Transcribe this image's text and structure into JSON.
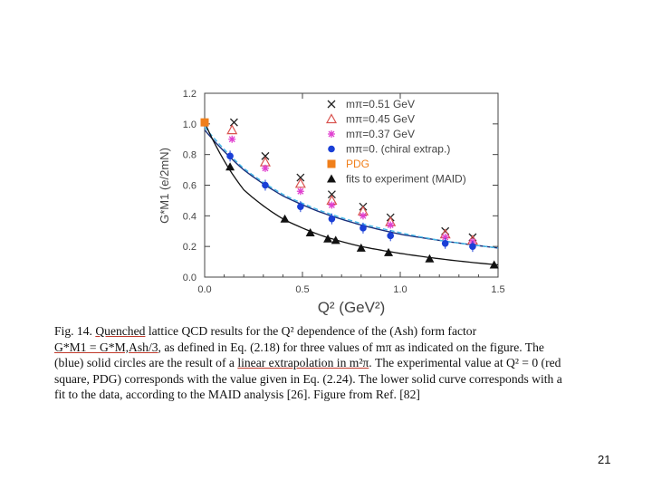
{
  "chart_data": {
    "type": "scatter",
    "xlabel": "Q² (GeV²)",
    "ylabel": "G*M1 (e/2mN)",
    "xlim": [
      0.0,
      1.5
    ],
    "ylim": [
      0.0,
      1.2
    ],
    "xticks": [
      "0.0",
      "0.5",
      "1.0",
      "1.5"
    ],
    "yticks": [
      "0.0",
      "0.2",
      "0.4",
      "0.6",
      "0.8",
      "1.0",
      "1.2"
    ],
    "grid": false,
    "legend_position": "top-right",
    "legend": [
      {
        "label": "mπ=0.51 GeV",
        "marker": "×",
        "color": "#222222"
      },
      {
        "label": "mπ=0.45 GeV",
        "marker": "△",
        "color": "#d9534f"
      },
      {
        "label": "mπ=0.37 GeV",
        "marker": "✳",
        "color": "#e040d0"
      },
      {
        "label": "mπ=0.  (chiral extrap.)",
        "marker": "●",
        "color": "#1a3fd6"
      },
      {
        "label": "PDG",
        "marker": "■",
        "color": "#f07f1a"
      },
      {
        "label": "fits to experiment (MAID)",
        "marker": "▲",
        "color": "#111111"
      }
    ],
    "series": [
      {
        "name": "mπ=0.51 GeV",
        "x": [
          0.15,
          0.31,
          0.49,
          0.65,
          0.81,
          0.95,
          1.23,
          1.37
        ],
        "y": [
          1.01,
          0.79,
          0.65,
          0.54,
          0.46,
          0.39,
          0.3,
          0.26
        ]
      },
      {
        "name": "mπ=0.45 GeV",
        "x": [
          0.14,
          0.31,
          0.49,
          0.65,
          0.81,
          0.95,
          1.23,
          1.37
        ],
        "y": [
          0.96,
          0.75,
          0.61,
          0.5,
          0.43,
          0.36,
          0.28,
          0.24
        ]
      },
      {
        "name": "mπ=0.37 GeV",
        "x": [
          0.14,
          0.31,
          0.49,
          0.65,
          0.81,
          0.95,
          1.23,
          1.37
        ],
        "y": [
          0.9,
          0.71,
          0.56,
          0.47,
          0.4,
          0.34,
          0.26,
          0.23
        ]
      },
      {
        "name": "mπ=0.  (chiral extrap.)",
        "x": [
          0.13,
          0.31,
          0.49,
          0.65,
          0.81,
          0.95,
          1.23,
          1.37
        ],
        "y": [
          0.79,
          0.6,
          0.46,
          0.38,
          0.32,
          0.27,
          0.22,
          0.2
        ]
      },
      {
        "name": "PDG",
        "x": [
          0.0
        ],
        "y": [
          1.01
        ]
      },
      {
        "name": "fits to experiment (MAID)",
        "x": [
          0.13,
          0.41,
          0.54,
          0.63,
          0.67,
          0.8,
          0.94,
          1.15,
          1.48
        ],
        "y": [
          0.72,
          0.38,
          0.29,
          0.25,
          0.24,
          0.19,
          0.16,
          0.12,
          0.08
        ]
      }
    ],
    "curves": [
      {
        "kind": "upper-fit-dark-blue",
        "x": [
          0.0,
          0.2,
          0.4,
          0.6,
          0.8,
          1.0,
          1.2,
          1.5
        ],
        "y": [
          0.96,
          0.7,
          0.53,
          0.42,
          0.34,
          0.28,
          0.24,
          0.19
        ]
      },
      {
        "kind": "upper-fit-light-blue-dashed",
        "x": [
          0.0,
          0.2,
          0.4,
          0.6,
          0.8,
          1.0,
          1.2,
          1.5
        ],
        "y": [
          0.98,
          0.71,
          0.54,
          0.43,
          0.35,
          0.29,
          0.24,
          0.19
        ]
      },
      {
        "kind": "lower-fit-black",
        "x": [
          0.0,
          0.2,
          0.4,
          0.6,
          0.8,
          1.0,
          1.2,
          1.5
        ],
        "y": [
          1.01,
          0.57,
          0.38,
          0.27,
          0.2,
          0.155,
          0.12,
          0.08
        ]
      }
    ]
  },
  "caption": {
    "line1_pre": "Fig. 14. ",
    "line1_u": "Quenched",
    "line1_post": " lattice QCD results for the Q² dependence of the (Ash) form factor",
    "line2_u": "G*M1 = G*M,Ash/3",
    "line2_post": ", as defined in Eq. (2.18) for three values of mπ as indicated on the figure. The",
    "line3_pre": "(blue) solid circles are the result of a ",
    "line3_u": "linear extrapolation in m²π",
    "line3_post": ". The experimental value at Q² = 0 (red",
    "line4": "square, PDG) corresponds with the value given in Eq. (2.24). The lower solid curve corresponds with a",
    "line5": "fit to the data, according to the MAID analysis [26]. Figure from Ref. [82]"
  },
  "page_number": "21"
}
